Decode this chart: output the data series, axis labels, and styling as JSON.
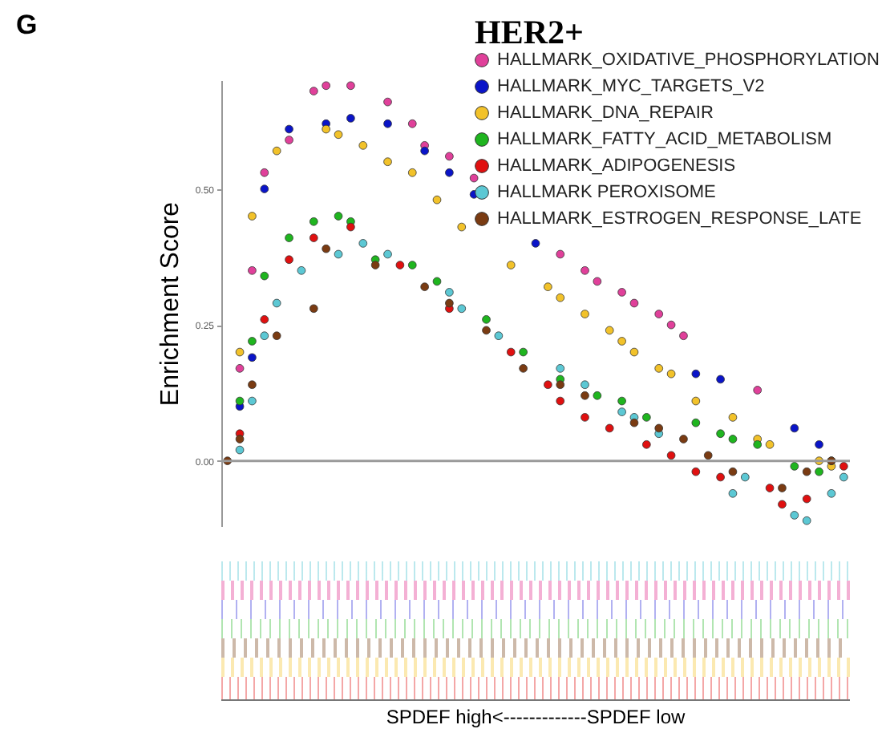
{
  "chart_data": {
    "type": "scatter",
    "title": "HER2+",
    "ylabel": "Enrichment Score",
    "annotations": [
      "G",
      "SPDEF high<-------------SPDEF low"
    ],
    "categories": [
      null,
      null,
      null,
      null,
      null,
      null,
      null,
      null,
      null,
      null,
      null,
      null,
      null,
      null,
      null,
      null,
      null,
      null,
      null,
      null,
      null,
      null,
      null,
      null,
      null,
      null,
      null,
      null,
      null,
      null,
      null,
      null,
      null,
      null,
      null,
      null,
      null,
      null,
      null,
      null,
      null,
      null,
      null,
      null,
      null,
      null,
      null,
      null,
      null,
      null,
      null
    ],
    "ylim": [
      -0.12,
      0.7
    ],
    "yticks": [
      {
        "value": 0,
        "label": "0.00"
      },
      {
        "value": 0.25,
        "label": "0.25"
      },
      {
        "value": 0.5,
        "label": "0.50"
      }
    ],
    "tick_labels": "y",
    "legend": "top right",
    "marker": "circle",
    "ref_lines": [
      {
        "axis": "y",
        "value": 0,
        "color": "#9a9a9a"
      }
    ],
    "series": [
      {
        "name": "HALLMARK_OXIDATIVE_PHOSPHORYLATION",
        "color": "#e0409a",
        "values": [
          null,
          0.17,
          0.35,
          0.53,
          null,
          0.59,
          null,
          0.68,
          0.69,
          null,
          0.69,
          null,
          null,
          0.66,
          null,
          0.62,
          0.58,
          null,
          0.56,
          null,
          0.52,
          null,
          null,
          null,
          null,
          null,
          null,
          0.38,
          null,
          0.35,
          0.33,
          null,
          0.31,
          0.29,
          null,
          0.27,
          0.25,
          0.23,
          null,
          null,
          null,
          null,
          null,
          0.13,
          null,
          null,
          null,
          null,
          null,
          null,
          null
        ]
      },
      {
        "name": "HALLMARK_MYC_TARGETS_V2",
        "color": "#0a14c8",
        "values": [
          null,
          0.1,
          0.19,
          0.5,
          null,
          0.61,
          null,
          null,
          0.62,
          null,
          0.63,
          null,
          null,
          0.62,
          null,
          null,
          0.57,
          null,
          0.53,
          null,
          0.49,
          null,
          null,
          null,
          null,
          0.4,
          null,
          null,
          null,
          null,
          null,
          null,
          null,
          null,
          null,
          null,
          null,
          null,
          0.16,
          null,
          0.15,
          null,
          null,
          null,
          null,
          null,
          0.06,
          null,
          0.03,
          null,
          null
        ]
      },
      {
        "name": "HALLMARK_DNA_REPAIR",
        "color": "#f2c22a",
        "values": [
          null,
          0.2,
          0.45,
          null,
          0.57,
          null,
          null,
          null,
          0.61,
          0.6,
          null,
          0.58,
          null,
          0.55,
          null,
          0.53,
          null,
          0.48,
          null,
          0.43,
          null,
          null,
          null,
          0.36,
          null,
          null,
          0.32,
          0.3,
          null,
          0.27,
          null,
          0.24,
          0.22,
          0.2,
          null,
          0.17,
          0.16,
          null,
          0.11,
          null,
          null,
          0.08,
          null,
          0.04,
          0.03,
          null,
          null,
          null,
          0,
          -0.01,
          null
        ]
      },
      {
        "name": "HALLMARK_FATTY_ACID_METABOLISM",
        "color": "#1fb51f",
        "values": [
          null,
          0.11,
          0.22,
          0.34,
          null,
          0.41,
          null,
          0.44,
          null,
          0.45,
          0.44,
          null,
          0.37,
          null,
          null,
          0.36,
          null,
          0.33,
          null,
          null,
          null,
          0.26,
          null,
          null,
          0.2,
          null,
          null,
          0.15,
          null,
          null,
          0.12,
          null,
          0.11,
          null,
          0.08,
          null,
          null,
          null,
          0.07,
          null,
          0.05,
          0.04,
          null,
          0.03,
          null,
          null,
          -0.01,
          null,
          -0.02,
          0,
          null
        ]
      },
      {
        "name": "HALLMARK_ADIPOGENESIS",
        "color": "#e01010",
        "values": [
          null,
          0.05,
          null,
          0.26,
          null,
          0.37,
          null,
          0.41,
          null,
          null,
          0.43,
          null,
          null,
          null,
          0.36,
          null,
          null,
          null,
          0.28,
          null,
          null,
          null,
          null,
          0.2,
          null,
          null,
          0.14,
          0.11,
          null,
          0.08,
          null,
          0.06,
          null,
          null,
          0.03,
          null,
          0.01,
          null,
          -0.02,
          null,
          -0.03,
          null,
          null,
          null,
          -0.05,
          -0.08,
          null,
          -0.07,
          null,
          null,
          -0.01
        ]
      },
      {
        "name": "HALLMARK  PEROXISOME",
        "color": "#5cc8d4",
        "values": [
          null,
          0.02,
          0.11,
          0.23,
          0.29,
          null,
          0.35,
          null,
          null,
          0.38,
          null,
          0.4,
          null,
          0.38,
          null,
          null,
          null,
          null,
          0.31,
          0.28,
          null,
          null,
          0.23,
          null,
          null,
          null,
          null,
          0.17,
          null,
          0.14,
          null,
          null,
          0.09,
          0.08,
          null,
          0.05,
          null,
          null,
          null,
          null,
          null,
          -0.06,
          -0.03,
          null,
          null,
          null,
          -0.1,
          -0.11,
          null,
          -0.06,
          -0.03
        ]
      },
      {
        "name": "HALLMARK_ESTROGEN_RESPONSE_LATE",
        "color": "#7a3b12",
        "values": [
          0,
          0.04,
          0.14,
          null,
          0.23,
          null,
          null,
          0.28,
          0.39,
          null,
          null,
          null,
          0.36,
          null,
          null,
          null,
          0.32,
          null,
          0.29,
          null,
          null,
          0.24,
          null,
          null,
          0.17,
          null,
          null,
          0.14,
          null,
          0.12,
          null,
          null,
          null,
          0.07,
          null,
          0.06,
          null,
          0.04,
          null,
          0.01,
          null,
          -0.02,
          null,
          null,
          null,
          -0.05,
          null,
          -0.02,
          null,
          0,
          null
        ]
      }
    ]
  }
}
